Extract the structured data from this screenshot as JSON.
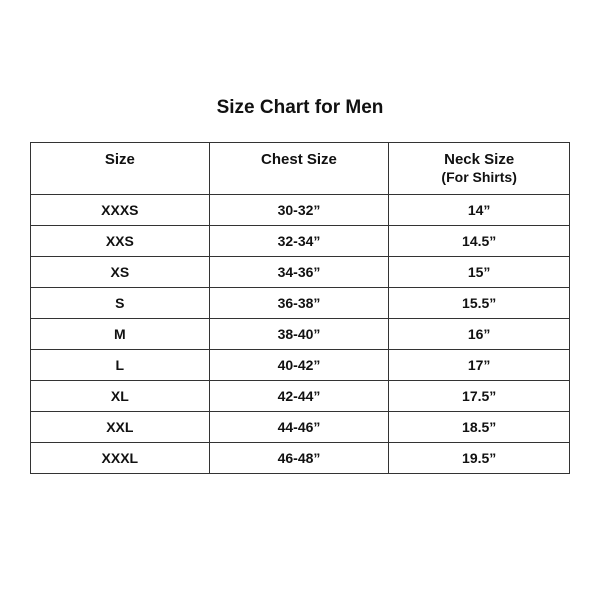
{
  "title": "Size Chart for Men",
  "headers": [
    {
      "label": "Size",
      "sub": ""
    },
    {
      "label": "Chest Size",
      "sub": ""
    },
    {
      "label": "Neck Size",
      "sub": "(For Shirts)"
    }
  ],
  "rows": [
    [
      "XXXS",
      "30-32”",
      "14”"
    ],
    [
      "XXS",
      "32-34”",
      "14.5”"
    ],
    [
      "XS",
      "34-36”",
      "15”"
    ],
    [
      "S",
      "36-38”",
      "15.5”"
    ],
    [
      "M",
      "38-40”",
      "16”"
    ],
    [
      "L",
      "40-42”",
      "17”"
    ],
    [
      "XL",
      "42-44”",
      "17.5”"
    ],
    [
      "XXL",
      "44-46”",
      "18.5”"
    ],
    [
      "XXXL",
      "46-48”",
      "19.5”"
    ]
  ]
}
